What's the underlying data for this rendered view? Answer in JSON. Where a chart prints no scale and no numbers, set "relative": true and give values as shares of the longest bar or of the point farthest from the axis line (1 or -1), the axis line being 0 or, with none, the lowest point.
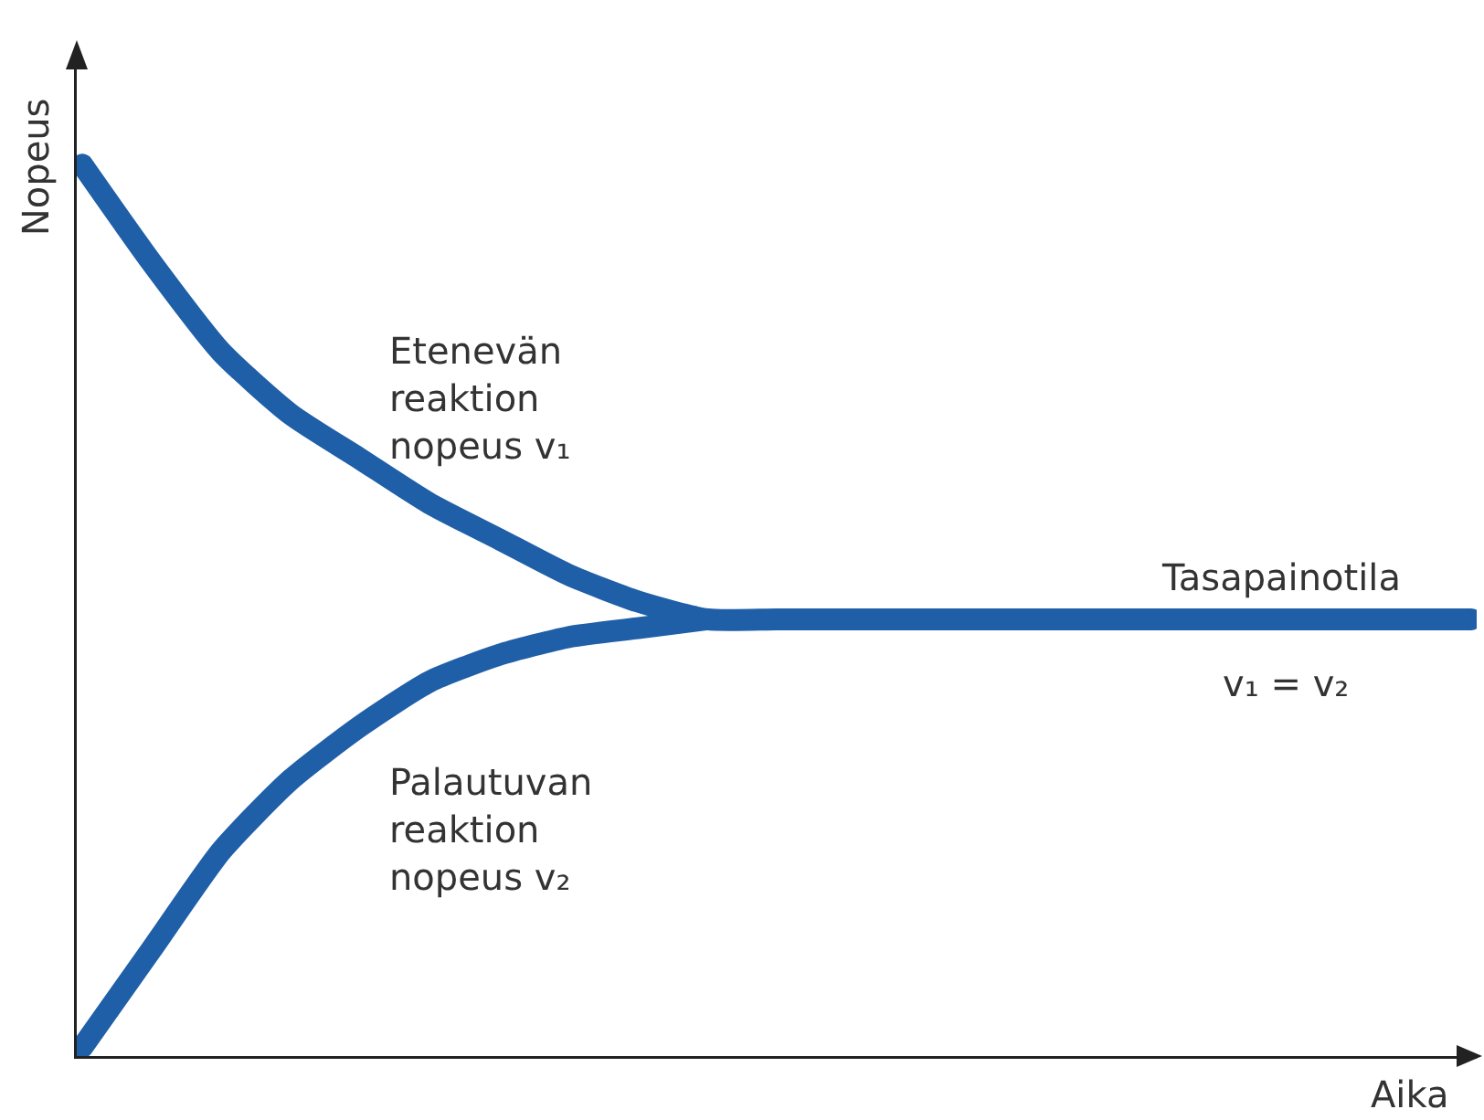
{
  "chart_data": {
    "type": "line",
    "relative": true,
    "xlabel": "Aika",
    "ylabel": "Nopeus",
    "categories": [
      null,
      null,
      null,
      null,
      null,
      null,
      null,
      null,
      null,
      null,
      null,
      null,
      null,
      null,
      null,
      null,
      null,
      null,
      null,
      null,
      null
    ],
    "series": [
      {
        "name": "Etenevän reaktion nopeus v₁",
        "color": "#1f5fa8",
        "values": [
          1,
          0.89,
          0.79,
          0.72,
          0.67,
          0.62,
          0.58,
          0.54,
          0.51,
          0.49,
          0.49,
          0.49,
          0.49,
          0.49,
          0.49,
          0.49,
          0.49,
          0.49,
          0.49,
          0.49,
          0.49
        ]
      },
      {
        "name": "Palautuvan reaktion nopeus v₂",
        "color": "#1f5fa8",
        "values": [
          0.01,
          0.12,
          0.23,
          0.31,
          0.37,
          0.42,
          0.45,
          0.47,
          0.48,
          0.49,
          null,
          null,
          null,
          null,
          null,
          null,
          null,
          null,
          null,
          null,
          null
        ]
      }
    ],
    "annotations": [
      "Tasapainotila",
      "v₁ = v₂"
    ],
    "legend": false,
    "line_style": "solid"
  }
}
